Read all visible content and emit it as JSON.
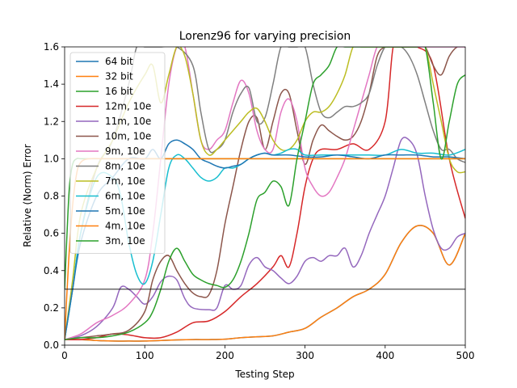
{
  "chart_data": {
    "type": "line",
    "title": "Lorenz96 for varying precision",
    "xlabel": "Testing Step",
    "ylabel": "Relative (Norm) Error",
    "xlim": [
      0,
      500
    ],
    "ylim": [
      0.0,
      1.6
    ],
    "xticks": [
      0,
      100,
      200,
      300,
      400,
      500
    ],
    "yticks": [
      0.0,
      0.2,
      0.4,
      0.6,
      0.8,
      1.0,
      1.2,
      1.4,
      1.6
    ],
    "grid": false,
    "legend_position": "upper-left",
    "hline": 0.3,
    "series": [
      {
        "name": "64 bit",
        "color": "#1f77b4",
        "x": [
          0,
          20,
          40,
          60,
          80,
          100,
          120,
          140,
          160,
          180,
          200,
          220,
          240,
          260,
          280,
          300,
          320,
          340,
          360,
          380,
          400,
          420,
          440,
          460,
          480,
          500
        ],
        "y": [
          0.03,
          0.03,
          0.025,
          0.022,
          0.022,
          0.022,
          0.025,
          0.028,
          0.03,
          0.03,
          0.032,
          0.04,
          0.045,
          0.05,
          0.07,
          0.09,
          0.15,
          0.2,
          0.26,
          0.3,
          0.38,
          0.55,
          0.64,
          0.6,
          0.43,
          0.6
        ]
      },
      {
        "name": "32 bit",
        "color": "#ff7f0e",
        "x": [
          0,
          20,
          40,
          60,
          80,
          100,
          120,
          140,
          160,
          180,
          200,
          220,
          240,
          260,
          280,
          300,
          320,
          340,
          360,
          380,
          400,
          420,
          440,
          460,
          480,
          500
        ],
        "y": [
          0.03,
          0.03,
          0.025,
          0.022,
          0.022,
          0.022,
          0.025,
          0.028,
          0.03,
          0.03,
          0.032,
          0.04,
          0.045,
          0.05,
          0.07,
          0.09,
          0.15,
          0.2,
          0.26,
          0.3,
          0.38,
          0.55,
          0.64,
          0.6,
          0.43,
          0.6
        ]
      },
      {
        "name": "16 bit",
        "color": "#2ca02c",
        "x": [
          0,
          3,
          6,
          10,
          15,
          20,
          30,
          50,
          100,
          150,
          200,
          250,
          300,
          350,
          400,
          450,
          500
        ],
        "y": [
          0.3,
          0.6,
          0.85,
          0.97,
          1.0,
          1.0,
          1.0,
          1.0,
          1.0,
          1.0,
          1.0,
          1.0,
          1.0,
          1.0,
          1.0,
          1.0,
          1.0
        ]
      },
      {
        "name": "12m, 10e",
        "color": "#d62728",
        "x": [
          0,
          20,
          40,
          60,
          80,
          100,
          120,
          140,
          160,
          180,
          200,
          220,
          240,
          260,
          270,
          280,
          290,
          300,
          310,
          320,
          340,
          360,
          380,
          400,
          410,
          420,
          430,
          440,
          460,
          480,
          500
        ],
        "y": [
          0.03,
          0.03,
          0.04,
          0.06,
          0.055,
          0.04,
          0.04,
          0.07,
          0.12,
          0.13,
          0.18,
          0.26,
          0.33,
          0.42,
          0.48,
          0.42,
          0.6,
          0.85,
          1.0,
          1.05,
          1.05,
          1.08,
          1.05,
          1.2,
          1.6,
          1.6,
          1.6,
          1.6,
          1.5,
          1.0,
          0.68
        ]
      },
      {
        "name": "11m, 10e",
        "color": "#9467bd",
        "x": [
          0,
          20,
          40,
          60,
          70,
          80,
          90,
          100,
          110,
          120,
          130,
          140,
          150,
          160,
          180,
          190,
          200,
          210,
          220,
          230,
          240,
          250,
          260,
          270,
          280,
          290,
          300,
          310,
          320,
          330,
          340,
          350,
          360,
          370,
          380,
          390,
          400,
          410,
          420,
          430,
          440,
          450,
          460,
          470,
          480,
          490,
          500
        ],
        "y": [
          0.03,
          0.05,
          0.1,
          0.2,
          0.31,
          0.3,
          0.26,
          0.22,
          0.26,
          0.34,
          0.37,
          0.35,
          0.25,
          0.2,
          0.19,
          0.2,
          0.32,
          0.3,
          0.32,
          0.43,
          0.47,
          0.42,
          0.4,
          0.36,
          0.33,
          0.37,
          0.45,
          0.47,
          0.45,
          0.48,
          0.48,
          0.52,
          0.42,
          0.48,
          0.6,
          0.7,
          0.8,
          0.95,
          1.1,
          1.1,
          1.02,
          0.8,
          0.62,
          0.52,
          0.52,
          0.58,
          0.6
        ]
      },
      {
        "name": "10m, 10e",
        "color": "#8c564b",
        "x": [
          0,
          20,
          40,
          60,
          80,
          100,
          110,
          120,
          130,
          140,
          150,
          160,
          170,
          180,
          190,
          200,
          210,
          220,
          230,
          240,
          250,
          260,
          270,
          280,
          290,
          300,
          310,
          320,
          330,
          340,
          350,
          360,
          370,
          380,
          390,
          400,
          410,
          420,
          430,
          440,
          450,
          460,
          470,
          480,
          490,
          500
        ],
        "y": [
          0.03,
          0.04,
          0.05,
          0.06,
          0.08,
          0.18,
          0.35,
          0.45,
          0.48,
          0.4,
          0.33,
          0.28,
          0.26,
          0.27,
          0.4,
          0.65,
          0.85,
          1.05,
          1.2,
          1.22,
          1.05,
          1.2,
          1.35,
          1.35,
          1.15,
          0.97,
          1.1,
          1.18,
          1.15,
          1.12,
          1.1,
          1.12,
          1.2,
          1.35,
          1.55,
          1.6,
          1.6,
          1.6,
          1.6,
          1.6,
          1.6,
          1.5,
          1.45,
          1.55,
          1.6,
          1.6
        ]
      },
      {
        "name": "9m, 10e",
        "color": "#e377c2",
        "x": [
          0,
          20,
          40,
          60,
          80,
          100,
          110,
          120,
          130,
          140,
          150,
          160,
          170,
          180,
          190,
          200,
          210,
          220,
          230,
          240,
          250,
          260,
          270,
          280,
          290,
          300,
          310,
          320,
          330,
          340,
          350,
          360,
          370,
          380,
          390,
          400,
          410,
          420,
          430,
          440,
          450,
          460,
          470,
          480,
          490,
          500
        ],
        "y": [
          0.03,
          0.06,
          0.12,
          0.16,
          0.22,
          0.35,
          0.6,
          1.0,
          1.4,
          1.6,
          1.6,
          1.35,
          1.1,
          1.05,
          1.1,
          1.15,
          1.3,
          1.42,
          1.35,
          1.15,
          1.05,
          1.05,
          1.25,
          1.32,
          1.2,
          0.95,
          0.85,
          0.8,
          0.82,
          0.9,
          1.0,
          1.15,
          1.3,
          1.45,
          1.6,
          1.6,
          1.6,
          1.6,
          1.6,
          1.6,
          1.6,
          1.6,
          1.6,
          1.6,
          1.6,
          1.6
        ]
      },
      {
        "name": "8m, 10e",
        "color": "#7f7f7f",
        "x": [
          0,
          10,
          20,
          40,
          60,
          80,
          90,
          100,
          110,
          120,
          140,
          160,
          170,
          180,
          190,
          200,
          210,
          220,
          230,
          240,
          250,
          260,
          270,
          280,
          290,
          300,
          310,
          320,
          330,
          340,
          350,
          360,
          370,
          380,
          390,
          400,
          410,
          420,
          430,
          440,
          450,
          460,
          470,
          480,
          490,
          500
        ],
        "y": [
          0.03,
          0.3,
          0.6,
          0.95,
          1.1,
          1.4,
          1.6,
          1.6,
          1.6,
          1.6,
          1.6,
          1.5,
          1.25,
          1.05,
          1.05,
          1.1,
          1.25,
          1.35,
          1.38,
          1.2,
          1.22,
          1.4,
          1.6,
          1.6,
          1.6,
          1.6,
          1.4,
          1.25,
          1.22,
          1.25,
          1.28,
          1.28,
          1.3,
          1.35,
          1.5,
          1.6,
          1.6,
          1.6,
          1.55,
          1.45,
          1.3,
          1.15,
          1.05,
          1.05,
          1.0,
          0.98
        ]
      },
      {
        "name": "7m, 10e",
        "color": "#bcbd22",
        "x": [
          0,
          10,
          20,
          40,
          60,
          80,
          100,
          110,
          120,
          130,
          140,
          150,
          160,
          170,
          180,
          190,
          200,
          210,
          220,
          230,
          240,
          250,
          260,
          270,
          280,
          290,
          300,
          310,
          320,
          330,
          340,
          350,
          360,
          370,
          380,
          390,
          400,
          410,
          420,
          430,
          440,
          450,
          460,
          470,
          480,
          490,
          500
        ],
        "y": [
          0.03,
          0.35,
          0.7,
          0.95,
          1.1,
          1.3,
          1.45,
          1.5,
          1.3,
          1.45,
          1.6,
          1.55,
          1.35,
          1.1,
          1.02,
          1.05,
          1.1,
          1.15,
          1.2,
          1.25,
          1.27,
          1.2,
          1.1,
          1.05,
          1.05,
          1.1,
          1.2,
          1.25,
          1.25,
          1.28,
          1.35,
          1.45,
          1.6,
          1.6,
          1.6,
          1.6,
          1.6,
          1.6,
          1.6,
          1.6,
          1.6,
          1.6,
          1.4,
          1.2,
          1.0,
          0.93,
          0.93
        ]
      },
      {
        "name": "6m, 10e",
        "color": "#17becf",
        "x": [
          0,
          10,
          20,
          40,
          60,
          70,
          80,
          90,
          100,
          110,
          120,
          130,
          140,
          150,
          160,
          170,
          180,
          190,
          200,
          210,
          220,
          230,
          240,
          250,
          260,
          270,
          280,
          290,
          300,
          320,
          340,
          360,
          380,
          400,
          420,
          440,
          460,
          480,
          500
        ],
        "y": [
          0.03,
          0.3,
          0.6,
          0.9,
          0.9,
          0.8,
          0.55,
          0.38,
          0.33,
          0.45,
          0.7,
          0.95,
          1.02,
          1.0,
          0.95,
          0.9,
          0.88,
          0.9,
          0.95,
          0.95,
          0.97,
          1.0,
          1.02,
          1.03,
          1.02,
          1.03,
          1.05,
          1.05,
          1.02,
          1.02,
          1.02,
          1.02,
          1.02,
          1.02,
          1.05,
          1.03,
          1.03,
          1.02,
          1.05
        ]
      },
      {
        "name": "5m, 10e",
        "color": "#1f77b4",
        "x": [
          0,
          10,
          20,
          40,
          60,
          80,
          100,
          110,
          120,
          130,
          140,
          150,
          160,
          170,
          180,
          190,
          200,
          210,
          220,
          230,
          240,
          250,
          260,
          280,
          300,
          320,
          340,
          360,
          380,
          400,
          420,
          440,
          460,
          480,
          500
        ],
        "y": [
          0.03,
          0.3,
          0.55,
          0.8,
          0.9,
          1.0,
          1.0,
          1.05,
          1.0,
          1.08,
          1.1,
          1.08,
          1.05,
          1.0,
          0.98,
          0.96,
          0.95,
          0.96,
          0.97,
          1.0,
          1.02,
          1.03,
          1.02,
          1.02,
          1.01,
          1.01,
          1.02,
          1.01,
          1.0,
          1.02,
          1.02,
          1.02,
          1.01,
          1.01,
          1.0
        ]
      },
      {
        "name": "4m, 10e",
        "color": "#ff7f0e",
        "x": [
          0,
          5,
          10,
          15,
          20,
          30,
          50,
          100,
          150,
          200,
          250,
          300,
          350,
          400,
          450,
          500
        ],
        "y": [
          0.03,
          0.45,
          0.75,
          0.92,
          0.98,
          1.0,
          1.0,
          1.0,
          1.0,
          1.0,
          1.0,
          1.0,
          1.0,
          1.0,
          1.0,
          1.0
        ]
      },
      {
        "name": "3m, 10e",
        "color": "#2ca02c",
        "x": [
          0,
          20,
          40,
          60,
          80,
          100,
          110,
          120,
          130,
          140,
          150,
          160,
          170,
          180,
          190,
          200,
          210,
          220,
          230,
          240,
          250,
          260,
          270,
          280,
          290,
          300,
          310,
          320,
          330,
          340,
          350,
          360,
          370,
          380,
          390,
          400,
          410,
          420,
          430,
          440,
          450,
          460,
          470,
          480,
          490,
          500
        ],
        "y": [
          0.03,
          0.04,
          0.04,
          0.05,
          0.07,
          0.12,
          0.18,
          0.3,
          0.45,
          0.52,
          0.45,
          0.38,
          0.35,
          0.33,
          0.32,
          0.31,
          0.35,
          0.45,
          0.6,
          0.78,
          0.82,
          0.88,
          0.85,
          0.75,
          1.0,
          1.2,
          1.4,
          1.45,
          1.5,
          1.6,
          1.6,
          1.6,
          1.6,
          1.6,
          1.6,
          1.6,
          1.6,
          1.6,
          1.6,
          1.6,
          1.6,
          1.3,
          1.0,
          1.2,
          1.4,
          1.45
        ]
      }
    ]
  }
}
